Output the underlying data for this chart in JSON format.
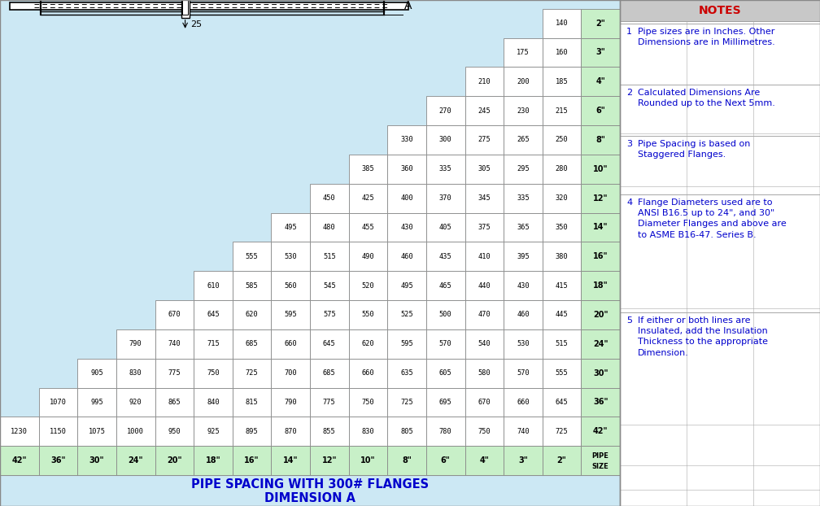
{
  "pipe_sizes": [
    "2\"",
    "3\"",
    "4\"",
    "6\"",
    "8\"",
    "10\"",
    "12\"",
    "14\"",
    "16\"",
    "18\"",
    "20\"",
    "24\"",
    "30\"",
    "36\"",
    "42\""
  ],
  "table_data": {
    "2\"": {
      "2\"": 140
    },
    "3\"": {
      "2\"": 160,
      "3\"": 175
    },
    "4\"": {
      "2\"": 185,
      "3\"": 200,
      "4\"": 210
    },
    "6\"": {
      "2\"": 215,
      "3\"": 230,
      "4\"": 245,
      "6\"": 270
    },
    "8\"": {
      "2\"": 250,
      "3\"": 265,
      "4\"": 275,
      "6\"": 300,
      "8\"": 330
    },
    "10\"": {
      "2\"": 280,
      "3\"": 295,
      "4\"": 305,
      "6\"": 335,
      "8\"": 360,
      "10\"": 385
    },
    "12\"": {
      "2\"": 320,
      "3\"": 335,
      "4\"": 345,
      "6\"": 370,
      "8\"": 400,
      "10\"": 425,
      "12\"": 450
    },
    "14\"": {
      "2\"": 350,
      "3\"": 365,
      "4\"": 375,
      "6\"": 405,
      "8\"": 430,
      "10\"": 455,
      "12\"": 480,
      "14\"": 495
    },
    "16\"": {
      "2\"": 380,
      "3\"": 395,
      "4\"": 410,
      "6\"": 435,
      "8\"": 460,
      "10\"": 490,
      "12\"": 515,
      "14\"": 530,
      "16\"": 555
    },
    "18\"": {
      "2\"": 415,
      "3\"": 430,
      "4\"": 440,
      "6\"": 465,
      "8\"": 495,
      "10\"": 520,
      "12\"": 545,
      "14\"": 560,
      "16\"": 585,
      "18\"": 610
    },
    "20\"": {
      "2\"": 445,
      "3\"": 460,
      "4\"": 470,
      "6\"": 500,
      "8\"": 525,
      "10\"": 550,
      "12\"": 575,
      "14\"": 595,
      "16\"": 620,
      "18\"": 645,
      "20\"": 670
    },
    "24\"": {
      "2\"": 515,
      "3\"": 530,
      "4\"": 540,
      "6\"": 570,
      "8\"": 595,
      "10\"": 620,
      "12\"": 645,
      "14\"": 660,
      "16\"": 685,
      "18\"": 715,
      "20\"": 740,
      "24\"": 790
    },
    "30\"": {
      "2\"": 555,
      "3\"": 570,
      "4\"": 580,
      "6\"": 605,
      "8\"": 635,
      "10\"": 660,
      "12\"": 685,
      "14\"": 700,
      "16\"": 725,
      "18\"": 750,
      "20\"": 775,
      "24\"": 830,
      "30\"": 905
    },
    "36\"": {
      "2\"": 645,
      "3\"": 660,
      "4\"": 670,
      "6\"": 695,
      "8\"": 725,
      "10\"": 750,
      "12\"": 775,
      "14\"": 790,
      "16\"": 815,
      "18\"": 840,
      "20\"": 865,
      "24\"": 920,
      "30\"": 995,
      "36\"": 1070
    },
    "42\"": {
      "2\"": 725,
      "3\"": 740,
      "4\"": 750,
      "6\"": 780,
      "8\"": 805,
      "10\"": 830,
      "12\"": 855,
      "14\"": 870,
      "16\"": 895,
      "18\"": 925,
      "20\"": 950,
      "24\"": 1000,
      "30\"": 1075,
      "36\"": 1150,
      "42\"": 1230
    }
  },
  "bg_color_main": "#cce8f4",
  "bg_color_notes": "#c8c8c8",
  "cell_color_white": "#ffffff",
  "cell_color_green": "#c8f0c8",
  "title": "PIPE SPACING WITH 300# FLANGES",
  "subtitle": "DIMENSION A",
  "title_color": "#0000cc",
  "notes_title_color": "#cc0000",
  "notes_text_color": "#0000cc",
  "notes_header": "NOTES",
  "notes": [
    {
      "num": "1",
      "text": "Pipe sizes are in Inches. Other\nDimensions are in Millimetres."
    },
    {
      "num": "2",
      "text": "Calculated Dimensions Are\nRounded up to the Next 5mm."
    },
    {
      "num": "3",
      "text": "Pipe Spacing is based on\nStaggered Flanges."
    },
    {
      "num": "4",
      "text": "Flange Diameters used are to\nANSI B16.5 up to 24\", and 30\"\nDiameter Flanges and above are\nto ASME B16-47. Series B."
    },
    {
      "num": "5",
      "text": "If either or both lines are\nInsulated, add the Insulation\nThickness to the appropriate\nDimension."
    }
  ]
}
